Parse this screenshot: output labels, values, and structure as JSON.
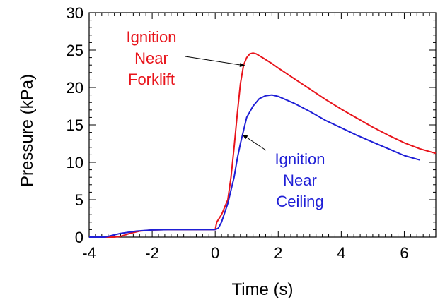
{
  "chart_data": {
    "type": "line",
    "title": "",
    "xlabel": "Time (s)",
    "ylabel": "Pressure (kPa)",
    "xlim": [
      -4,
      7
    ],
    "ylim": [
      0,
      30
    ],
    "x_ticks": [
      -4,
      -2,
      0,
      2,
      4,
      6
    ],
    "y_ticks": [
      0,
      5,
      10,
      15,
      20,
      25,
      30
    ],
    "grid": false,
    "series": [
      {
        "name": "Ignition Near Forklift",
        "color": "#e8141b",
        "x": [
          -4.0,
          -3.2,
          -3.0,
          -2.7,
          -2.4,
          -2.0,
          -1.5,
          -1.0,
          -0.5,
          0.0,
          0.05,
          0.2,
          0.4,
          0.5,
          0.6,
          0.7,
          0.8,
          0.9,
          1.0,
          1.1,
          1.2,
          1.3,
          1.5,
          1.8,
          2.0,
          2.5,
          3.0,
          3.5,
          4.0,
          4.5,
          5.0,
          5.5,
          6.0,
          6.5,
          7.0
        ],
        "y": [
          0.0,
          0.0,
          0.1,
          0.5,
          0.8,
          0.95,
          1.0,
          1.0,
          1.0,
          1.0,
          2.0,
          3.0,
          5.0,
          8.0,
          12.0,
          16.5,
          20.5,
          23.0,
          24.0,
          24.5,
          24.6,
          24.5,
          24.0,
          23.2,
          22.6,
          21.2,
          19.8,
          18.4,
          17.1,
          15.9,
          14.7,
          13.6,
          12.6,
          11.8,
          11.2
        ]
      },
      {
        "name": "Ignition Near Ceiling",
        "color": "#1f1fd6",
        "x": [
          -4.0,
          -3.5,
          -3.0,
          -2.5,
          -2.0,
          -1.5,
          -1.0,
          -0.5,
          0.0,
          0.1,
          0.2,
          0.4,
          0.6,
          0.7,
          0.8,
          1.0,
          1.2,
          1.4,
          1.6,
          1.8,
          2.0,
          2.5,
          3.0,
          3.5,
          4.0,
          4.5,
          5.0,
          5.5,
          6.0,
          6.5
        ],
        "y": [
          0.0,
          0.0,
          0.5,
          0.8,
          0.95,
          1.0,
          1.0,
          1.0,
          1.0,
          1.2,
          2.0,
          4.5,
          8.0,
          10.5,
          12.5,
          16.0,
          17.5,
          18.5,
          18.9,
          19.0,
          18.8,
          17.9,
          16.8,
          15.6,
          14.6,
          13.6,
          12.7,
          11.8,
          10.9,
          10.3
        ]
      }
    ],
    "annotations": [
      {
        "series": 0,
        "lines": [
          "Ignition",
          "Near",
          "Forklift"
        ],
        "color": "#e8141b"
      },
      {
        "series": 1,
        "lines": [
          "Ignition",
          "Near",
          "Ceiling"
        ],
        "color": "#1f1fd6"
      }
    ]
  }
}
